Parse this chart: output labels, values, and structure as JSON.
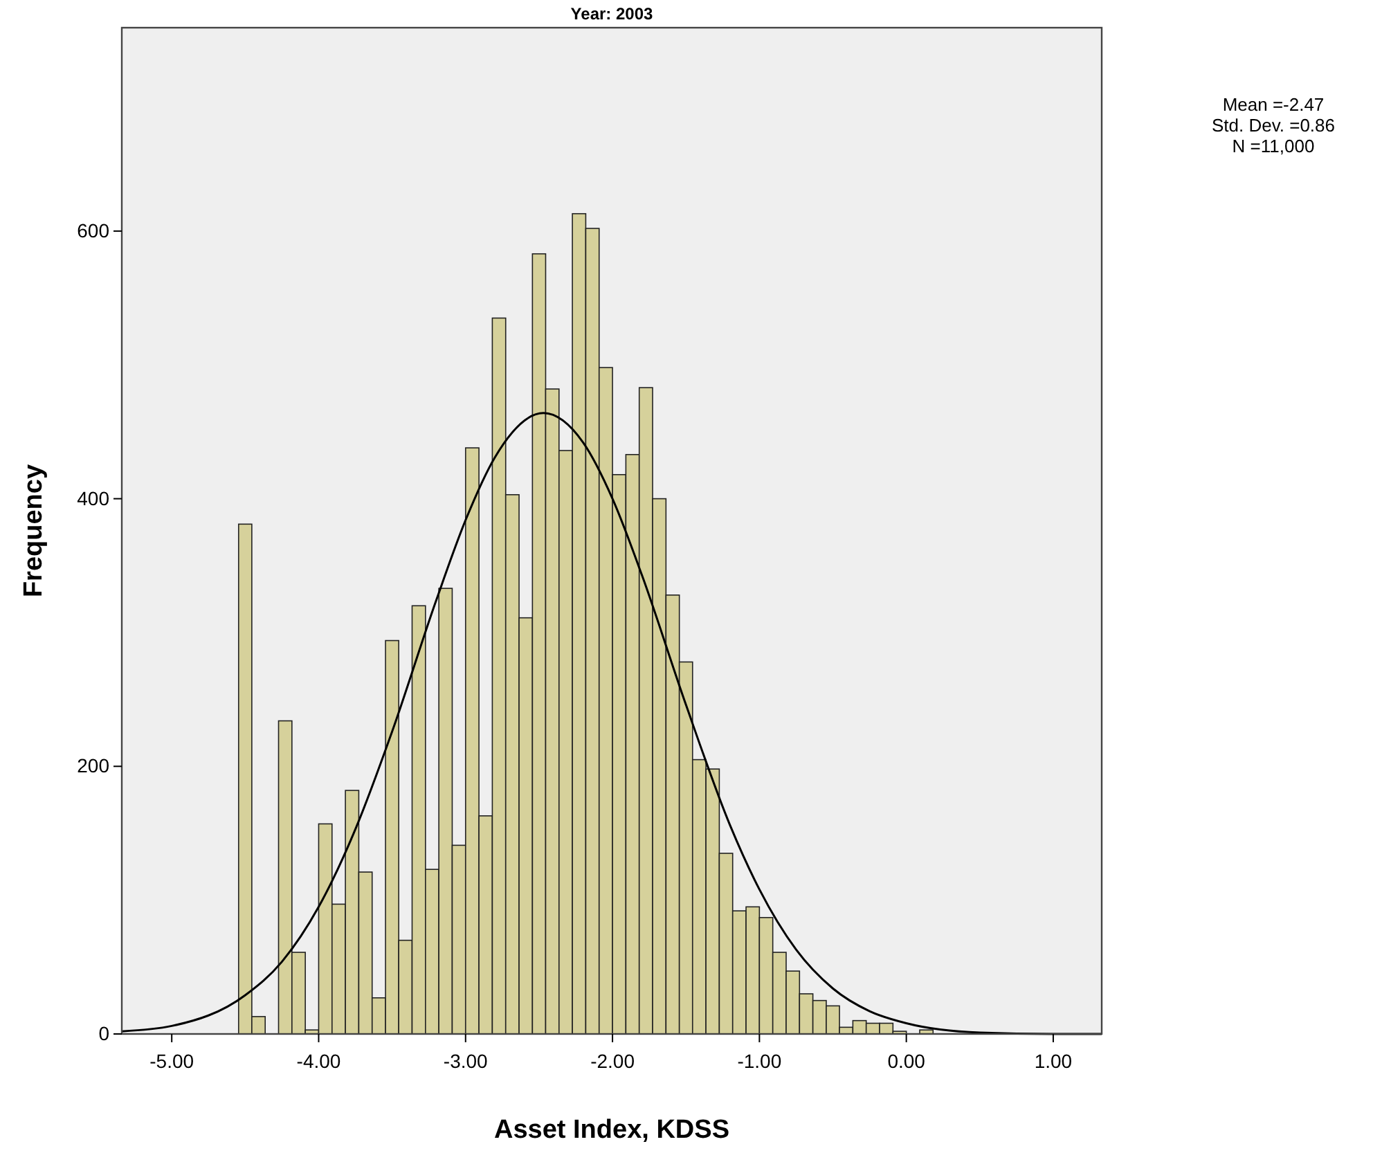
{
  "chart_data": {
    "type": "histogram",
    "title": "Year: 2003",
    "xlabel": "Asset Index, KDSS",
    "ylabel": "Frequency",
    "annotations": [
      "Mean =-2.47",
      "Std. Dev. =0.86",
      "N =11,000"
    ],
    "bins": [
      -4.545,
      -4.455,
      -4.364,
      -4.273,
      -4.182,
      -4.091,
      -4.0,
      -3.909,
      -3.818,
      -3.727,
      -3.636,
      -3.545,
      -3.455,
      -3.364,
      -3.273,
      -3.182,
      -3.091,
      -3.0,
      -2.909,
      -2.818,
      -2.727,
      -2.636,
      -2.545,
      -2.455,
      -2.364,
      -2.273,
      -2.182,
      -2.091,
      -2.0,
      -1.909,
      -1.818,
      -1.727,
      -1.636,
      -1.545,
      -1.455,
      -1.364,
      -1.273,
      -1.182,
      -1.091,
      -1.0,
      -0.909,
      -0.818,
      -0.727,
      -0.636,
      -0.545,
      -0.455,
      -0.364,
      -0.273,
      -0.182,
      -0.091,
      0.0,
      0.091,
      0.182
    ],
    "series": [
      {
        "color": "#d6d19b",
        "values": [
          381,
          13,
          0,
          234,
          61,
          3,
          157,
          97,
          182,
          121,
          27,
          294,
          70,
          320,
          123,
          333,
          141,
          438,
          163,
          535,
          403,
          311,
          583,
          482,
          436,
          613,
          602,
          498,
          418,
          433,
          483,
          400,
          328,
          278,
          205,
          198,
          135,
          92,
          95,
          87,
          61,
          47,
          30,
          25,
          21,
          5,
          10,
          8,
          8,
          2,
          0,
          3
        ]
      },
      {
        "type": "line",
        "color": "#000000",
        "x": [
          -5.34,
          -5,
          -4.5,
          -4.25,
          -4,
          -3.75,
          -3.5,
          -3.2,
          -3,
          -2.8,
          -2.47,
          -2.2,
          -2,
          -1.8,
          -1.5,
          -1.2,
          -1,
          -0.75,
          -0.5,
          -0.25,
          0,
          0.5,
          1,
          1.33
        ],
        "values": [
          2,
          6,
          29,
          54,
          95,
          153,
          226,
          324,
          384,
          431,
          464,
          442,
          400,
          343,
          246,
          156,
          108,
          63,
          34,
          17,
          8,
          1,
          0,
          0
        ]
      }
    ],
    "xlim": [
      -5.34,
      1.33
    ],
    "ylim": [
      0,
      752
    ],
    "xticks": [
      {
        "value": -5,
        "label": "-5.00"
      },
      {
        "value": -4,
        "label": "-4.00"
      },
      {
        "value": -3,
        "label": "-3.00"
      },
      {
        "value": -2,
        "label": "-2.00"
      },
      {
        "value": -1,
        "label": "-1.00"
      },
      {
        "value": 0,
        "label": "0.00"
      },
      {
        "value": 1,
        "label": "1.00"
      }
    ],
    "yticks": [
      0,
      200,
      400,
      600
    ],
    "grid": false,
    "marker": "none",
    "line_style": "solid"
  }
}
